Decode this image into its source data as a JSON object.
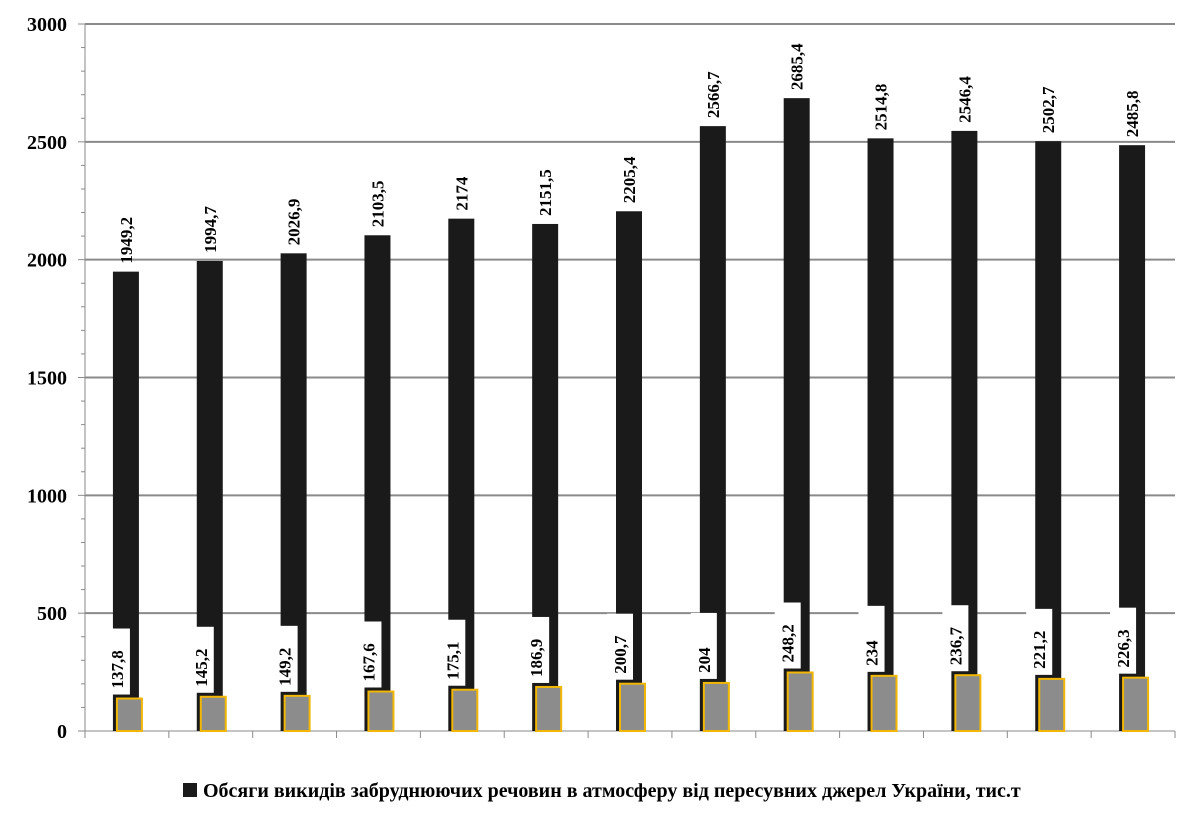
{
  "chart_data": {
    "type": "bar",
    "categories": [
      "",
      "",
      "",
      "",
      "",
      "",
      "",
      "",
      "",
      "",
      "",
      "",
      ""
    ],
    "ylim": [
      0,
      3000
    ],
    "yticks": [
      "0",
      "500",
      "1000",
      "1500",
      "2000",
      "2500",
      "3000"
    ],
    "grid": true,
    "legend_position": "bottom",
    "series": [
      {
        "name": "Обсяги викидів забруднюючих речовин в атмосферу від пересувних джерел України, тис.т",
        "color": "#1a1a1a",
        "values": [
          1949.2,
          1994.7,
          2026.9,
          2103.5,
          2174,
          2151.5,
          2205.4,
          2566.7,
          2685.4,
          2514.8,
          2546.4,
          2502.7,
          2485.8
        ],
        "labels": [
          "1949,2",
          "1994,7",
          "2026,9",
          "2103,5",
          "2174",
          "2151,5",
          "2205,4",
          "2566,7",
          "2685,4",
          "2514,8",
          "2546,4",
          "2502,7",
          "2485,8"
        ]
      },
      {
        "color": "#8c8c8c",
        "edge_color": "#f2b705",
        "values": [
          137.8,
          145.2,
          149.2,
          167.6,
          175.1,
          186.9,
          200.7,
          204,
          248.2,
          234,
          236.7,
          221.2,
          226.3
        ],
        "labels": [
          "137,8",
          "145,2",
          "149,2",
          "167,6",
          "175,1",
          "186,9",
          "200,7",
          "204",
          "248,2",
          "234",
          "236,7",
          "221,2",
          "226,3"
        ]
      }
    ]
  }
}
